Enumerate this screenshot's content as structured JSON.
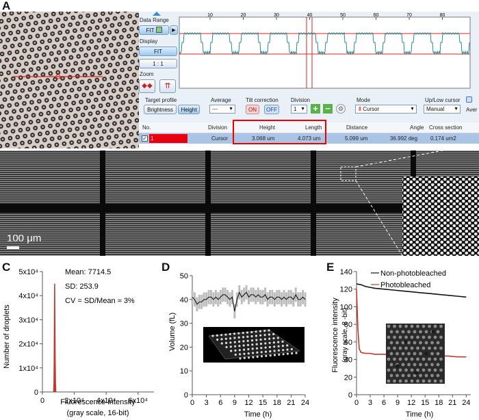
{
  "panels": {
    "a": "A",
    "b": "B",
    "c": "C",
    "d": "D",
    "e": "E"
  },
  "panel_a": {
    "data_range_label": "Data Range",
    "fit_label": "FIT",
    "display_label": "Display",
    "display_fit_label": "FIT",
    "ratio_label": "1 : 1",
    "zoom_label": "Zoom",
    "profile_ticks": [
      "10",
      "20",
      "30",
      "40",
      "50",
      "60",
      "70",
      "80"
    ],
    "target_profile_label": "Target profile",
    "brightness_label": "Brightness",
    "height_label": "Height",
    "average_label": "Average",
    "average_value": "---",
    "tilt_label": "Tilt correction",
    "on_label": "ON",
    "off_label": "OFF",
    "division_label": "Division",
    "division_value": "1",
    "mode_label": "Mode",
    "mode_value": "Cursor",
    "updown_label": "Up/Low cursor",
    "updown_value": "Manual",
    "aver_label": "Aver",
    "table": {
      "headers": [
        "No.",
        "Division",
        "Height",
        "Length",
        "Distance",
        "Angle",
        "Cross section"
      ],
      "row": [
        "1",
        "Cursor",
        "3.068 um",
        "4.073 um",
        "5.099 um",
        "36.992 deg",
        "0.174 um2"
      ]
    }
  },
  "panel_b": {
    "scalebar_label": "100 μm"
  },
  "chart_data": [
    {
      "type": "bar",
      "panel": "C",
      "title": "",
      "xlabel": "Fluorescence intensity (gray scale, 16-bit)",
      "xlabel_line1": "Fluorescence intensity",
      "xlabel_line2": "(gray scale, 16-bit)",
      "ylabel": "Number of droplets",
      "xlim": [
        0,
        70000
      ],
      "ylim": [
        0,
        50000
      ],
      "x_ticks": [
        0,
        20000,
        40000,
        60000
      ],
      "x_tick_labels": [
        "0",
        "2x10⁴",
        "4x10⁴",
        "6x10⁴"
      ],
      "y_ticks": [
        0,
        10000,
        20000,
        30000,
        40000,
        50000
      ],
      "y_tick_labels": [
        "0",
        "1x10⁴",
        "2x10⁴",
        "3x10⁴",
        "4x10⁴",
        "5x10⁴"
      ],
      "x": [
        7000,
        7200,
        7400,
        7600,
        7700,
        7800,
        8000,
        8200,
        8400
      ],
      "values": [
        0,
        3000,
        12000,
        39000,
        45000,
        30000,
        14000,
        4000,
        0
      ],
      "color": "#c0392b",
      "annotations": [
        "Mean: 7714.5",
        "SD: 253.9",
        "CV = SD/Mean ≈ 3%"
      ]
    },
    {
      "type": "line",
      "panel": "D",
      "xlabel": "Time (h)",
      "ylabel": "Volume (fL)",
      "xlim": [
        0,
        24
      ],
      "ylim": [
        0,
        50
      ],
      "x_ticks": [
        0,
        3,
        6,
        9,
        12,
        15,
        18,
        21,
        24
      ],
      "y_ticks": [
        0,
        10,
        20,
        30,
        40,
        50
      ],
      "x": [
        0,
        0.5,
        1,
        1.5,
        2,
        2.5,
        3,
        3.5,
        4,
        4.5,
        5,
        5.5,
        6,
        6.5,
        7,
        7.5,
        8,
        8.5,
        9,
        9.5,
        10,
        10.5,
        11,
        11.5,
        12,
        12.5,
        13,
        13.5,
        14,
        14.5,
        15,
        15.5,
        16,
        16.5,
        17,
        17.5,
        18,
        18.5,
        19,
        19.5,
        20,
        20.5,
        21,
        21.5,
        22,
        22.5,
        23,
        23.5,
        24
      ],
      "values": [
        41,
        40,
        38,
        39,
        39,
        40,
        40,
        41,
        41,
        40,
        41,
        40,
        41,
        42,
        42,
        41,
        40,
        41,
        35,
        40,
        43,
        41,
        42,
        43,
        41,
        42,
        42,
        41,
        42,
        41,
        41,
        42,
        40,
        41,
        41,
        40,
        41,
        41,
        40,
        41,
        40,
        41,
        41,
        40,
        42,
        40,
        40,
        41,
        40
      ],
      "error": 3,
      "color": "#222222",
      "band_color": "#bdbdbd"
    },
    {
      "type": "line",
      "panel": "E",
      "xlabel": "Time (h)",
      "ylabel": "Fluorescence intensity (gray scale, 8-bit)",
      "ylabel_line1": "Fluorescence intensity",
      "ylabel_line2": "(gray scale, 8 -bit)",
      "xlim": [
        0,
        25
      ],
      "ylim": [
        0,
        140
      ],
      "x_ticks": [
        0,
        3,
        6,
        9,
        12,
        15,
        18,
        21,
        24
      ],
      "y_ticks": [
        0,
        20,
        40,
        60,
        80,
        100,
        120,
        140
      ],
      "series": [
        {
          "name": "Non-photobleached",
          "color": "#111111",
          "x": [
            0,
            1,
            2,
            3,
            4,
            6,
            8,
            10,
            12,
            14,
            16,
            18,
            20,
            22,
            24
          ],
          "values": [
            126,
            125,
            123,
            122,
            121,
            120,
            119,
            118,
            117,
            116,
            115,
            114,
            113,
            112,
            111
          ]
        },
        {
          "name": "Photobleached",
          "color": "#c0392b",
          "x": [
            0,
            0.3,
            0.6,
            1,
            2,
            3,
            4,
            6,
            8,
            10,
            12,
            14,
            16,
            18,
            20,
            22,
            24
          ],
          "values": [
            120,
            75,
            52,
            48,
            47,
            47,
            46,
            46,
            45,
            45,
            45,
            44,
            44,
            44,
            44,
            43,
            43
          ]
        }
      ]
    }
  ]
}
